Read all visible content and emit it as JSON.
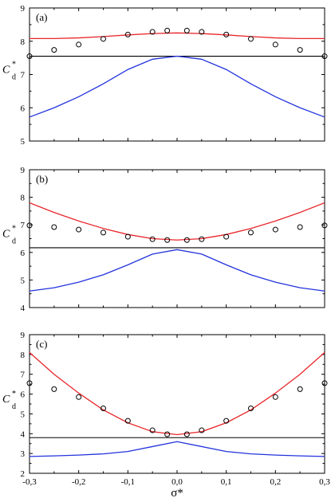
{
  "chart_data": [
    {
      "panel_label": "(a)",
      "type": "line",
      "ylabel": "C",
      "ylabel_superscript": "*",
      "ylabel_subscript": "d",
      "xlim": [
        -0.3,
        0.3
      ],
      "ylim": [
        5,
        9
      ],
      "yticks": [
        "5",
        "6",
        "7",
        "8",
        "9"
      ],
      "hline": 7.55,
      "red_curve": {
        "x": [
          -0.3,
          -0.25,
          -0.2,
          -0.15,
          -0.1,
          -0.05,
          0,
          0.05,
          0.1,
          0.15,
          0.2,
          0.25,
          0.3
        ],
        "y": [
          8.08,
          8.08,
          8.1,
          8.14,
          8.19,
          8.23,
          8.25,
          8.23,
          8.19,
          8.14,
          8.1,
          8.08,
          8.08
        ]
      },
      "blue_curve": {
        "x": [
          -0.3,
          -0.25,
          -0.2,
          -0.15,
          -0.1,
          -0.05,
          0,
          0.05,
          0.1,
          0.15,
          0.2,
          0.25,
          0.3
        ],
        "y": [
          5.72,
          6.0,
          6.33,
          6.72,
          7.15,
          7.46,
          7.55,
          7.46,
          7.15,
          6.72,
          6.33,
          6.0,
          5.72
        ]
      },
      "points": {
        "x": [
          -0.3,
          -0.25,
          -0.2,
          -0.15,
          -0.1,
          -0.05,
          -0.02,
          0.02,
          0.05,
          0.1,
          0.15,
          0.2,
          0.25,
          0.3
        ],
        "y": [
          7.55,
          7.74,
          7.9,
          8.07,
          8.2,
          8.28,
          8.32,
          8.32,
          8.28,
          8.2,
          8.07,
          7.9,
          7.74,
          7.55
        ]
      }
    },
    {
      "panel_label": "(b)",
      "type": "line",
      "ylabel": "C",
      "ylabel_superscript": "*",
      "ylabel_subscript": "d",
      "xlim": [
        -0.3,
        0.3
      ],
      "ylim": [
        4,
        9
      ],
      "yticks": [
        "4",
        "5",
        "6",
        "7",
        "8",
        "9"
      ],
      "hline": 6.17,
      "red_curve": {
        "x": [
          -0.3,
          -0.25,
          -0.2,
          -0.15,
          -0.1,
          -0.05,
          0,
          0.05,
          0.1,
          0.15,
          0.2,
          0.25,
          0.3
        ],
        "y": [
          7.8,
          7.45,
          7.14,
          6.87,
          6.65,
          6.5,
          6.45,
          6.5,
          6.65,
          6.87,
          7.14,
          7.45,
          7.8
        ]
      },
      "blue_curve": {
        "x": [
          -0.3,
          -0.25,
          -0.2,
          -0.15,
          -0.1,
          -0.05,
          0,
          0.05,
          0.1,
          0.15,
          0.2,
          0.25,
          0.3
        ],
        "y": [
          4.6,
          4.72,
          4.92,
          5.19,
          5.55,
          5.94,
          6.1,
          5.94,
          5.55,
          5.19,
          4.92,
          4.72,
          4.6
        ]
      },
      "points": {
        "x": [
          -0.3,
          -0.25,
          -0.2,
          -0.15,
          -0.1,
          -0.05,
          -0.02,
          0.02,
          0.05,
          0.1,
          0.15,
          0.2,
          0.25,
          0.3
        ],
        "y": [
          6.98,
          6.92,
          6.83,
          6.72,
          6.57,
          6.48,
          6.45,
          6.45,
          6.48,
          6.57,
          6.72,
          6.83,
          6.92,
          6.98
        ]
      }
    },
    {
      "panel_label": "(c)",
      "type": "line",
      "ylabel": "C",
      "ylabel_superscript": "*",
      "ylabel_subscript": "d",
      "xlim": [
        -0.3,
        0.3
      ],
      "ylim": [
        2,
        9
      ],
      "yticks": [
        "2",
        "3",
        "4",
        "5",
        "6",
        "7",
        "8",
        "9"
      ],
      "xticks": [
        "-0,3",
        "-0,2",
        "-0,1",
        "0,0",
        "0,1",
        "0,2",
        "0,3"
      ],
      "xlabel": "σ*",
      "hline": 3.8,
      "red_curve": {
        "x": [
          -0.3,
          -0.25,
          -0.2,
          -0.15,
          -0.1,
          -0.05,
          0,
          0.05,
          0.1,
          0.15,
          0.2,
          0.25,
          0.3
        ],
        "y": [
          8.1,
          7.0,
          6.05,
          5.2,
          4.55,
          4.1,
          3.95,
          4.1,
          4.55,
          5.2,
          6.05,
          7.0,
          8.1
        ]
      },
      "blue_curve": {
        "x": [
          -0.3,
          -0.25,
          -0.2,
          -0.15,
          -0.1,
          -0.05,
          0,
          0.05,
          0.1,
          0.15,
          0.2,
          0.25,
          0.3
        ],
        "y": [
          2.85,
          2.88,
          2.92,
          2.98,
          3.1,
          3.35,
          3.6,
          3.35,
          3.1,
          2.98,
          2.92,
          2.88,
          2.85
        ]
      },
      "points": {
        "x": [
          -0.3,
          -0.25,
          -0.2,
          -0.15,
          -0.1,
          -0.05,
          -0.02,
          0.02,
          0.05,
          0.1,
          0.15,
          0.2,
          0.25,
          0.3
        ],
        "y": [
          6.55,
          6.25,
          5.85,
          5.28,
          4.65,
          4.17,
          3.97,
          3.97,
          4.17,
          4.65,
          5.28,
          5.85,
          6.25,
          6.55
        ]
      }
    }
  ],
  "colors": {
    "red": "#e8262b",
    "blue": "#2233dd",
    "axis": "#000000"
  }
}
